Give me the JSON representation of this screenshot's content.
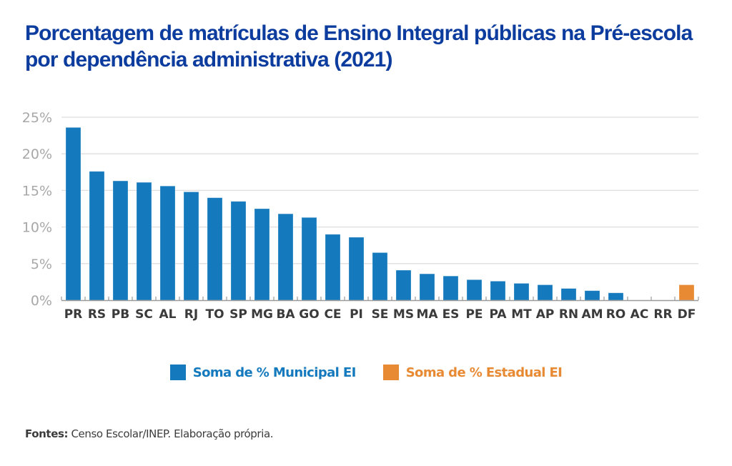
{
  "title": "Porcentagem de matrículas de Ensino Integral públicas na Pré-escola por dependência administrativa (2021)",
  "footer": {
    "label": "Fontes:",
    "text": " Censo Escolar/INEP. Elaboração própria."
  },
  "colors": {
    "title": "#0c3c9e",
    "municipal": "#1479bd",
    "estadual": "#e88a34",
    "grid": "#dedede",
    "axis": "#9a9a9a"
  },
  "chart_data": {
    "type": "bar",
    "title": "Porcentagem de matrículas de Ensino Integral públicas na Pré-escola por dependência administrativa (2021)",
    "xlabel": "",
    "ylabel": "",
    "ylim": [
      0,
      25
    ],
    "yticks": [
      0,
      5,
      10,
      15,
      20,
      25
    ],
    "ytick_labels": [
      "0%",
      "5%",
      "10%",
      "15%",
      "20%",
      "25%"
    ],
    "grid": true,
    "legend_position": "bottom",
    "stacked": true,
    "categories": [
      "PR",
      "RS",
      "PB",
      "SC",
      "AL",
      "RJ",
      "TO",
      "SP",
      "MG",
      "BA",
      "GO",
      "CE",
      "PI",
      "SE",
      "MS",
      "MA",
      "ES",
      "PE",
      "PA",
      "MT",
      "AP",
      "RN",
      "AM",
      "RO",
      "AC",
      "RR",
      "DF"
    ],
    "series": [
      {
        "name": "Soma de % Municipal EI",
        "color": "#1479bd",
        "values": [
          23.6,
          17.6,
          16.3,
          16.1,
          15.6,
          14.8,
          14.0,
          13.5,
          12.5,
          11.8,
          11.3,
          9.0,
          8.6,
          6.5,
          4.1,
          3.6,
          3.3,
          2.8,
          2.6,
          2.3,
          2.1,
          1.6,
          1.3,
          1.0,
          0,
          0,
          0
        ]
      },
      {
        "name": "Soma de % Estadual EI",
        "color": "#e88a34",
        "values": [
          0,
          0,
          0,
          0,
          0,
          0,
          0,
          0,
          0,
          0,
          0,
          0,
          0,
          0,
          0,
          0,
          0,
          0,
          0,
          0,
          0,
          0,
          0,
          0,
          0,
          0,
          2.1
        ]
      }
    ]
  }
}
